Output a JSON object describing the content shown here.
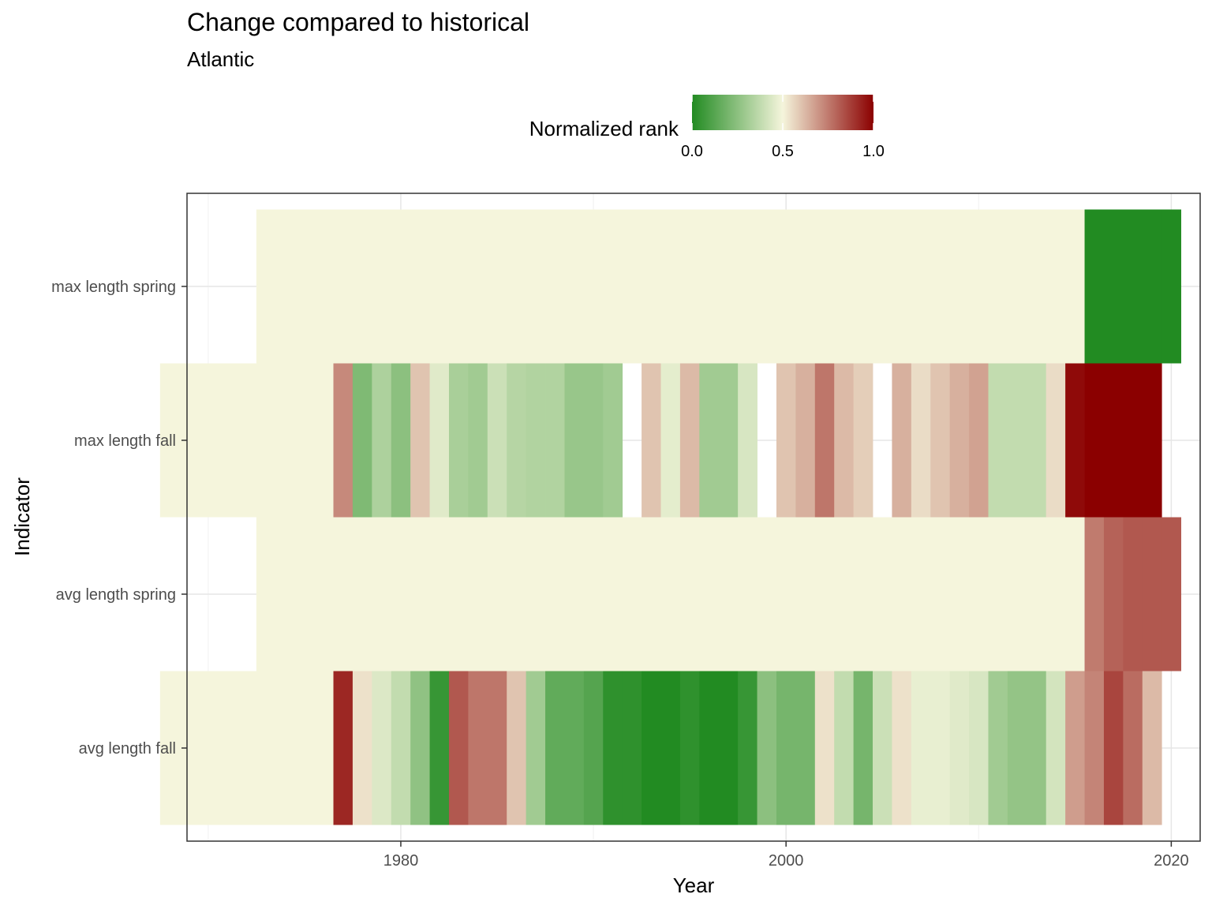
{
  "chart_data": {
    "type": "heatmap",
    "title": "Change compared to historical",
    "subtitle": "Atlantic",
    "xlabel": "Year",
    "ylabel": "Indicator",
    "xlim": [
      1968.9,
      2021.5
    ],
    "x_ticks": [
      1980,
      2000,
      2020
    ],
    "x_tick_labels": [
      "1980",
      "2000",
      "2020"
    ],
    "y_categories": [
      "avg length fall",
      "avg length spring",
      "max length fall",
      "max length spring"
    ],
    "grid": true,
    "legend": {
      "title": "Normalized rank",
      "position": "top",
      "ticks": [
        0.0,
        0.5,
        1.0
      ],
      "tick_labels": [
        "0.0",
        "0.5",
        "1.0"
      ],
      "colors": [
        "#228B22",
        "#F5F5DC",
        "#8B0000"
      ]
    },
    "rows": [
      {
        "name": "max length spring",
        "ranges": [
          {
            "from": 1973,
            "to": 2015,
            "value": 0.5
          }
        ],
        "cells": [
          [
            2016,
            0.0
          ],
          [
            2017,
            0.0
          ],
          [
            2018,
            0.0
          ],
          [
            2019,
            0.0
          ],
          [
            2020,
            0.0
          ]
        ]
      },
      {
        "name": "max length fall",
        "ranges": [
          {
            "from": 1968,
            "to": 1976,
            "value": 0.5
          }
        ],
        "cells": [
          [
            1977,
            0.72
          ],
          [
            1978,
            0.22
          ],
          [
            1979,
            0.33
          ],
          [
            1980,
            0.25
          ],
          [
            1981,
            0.6
          ],
          [
            1982,
            0.45
          ],
          [
            1983,
            0.32
          ],
          [
            1984,
            0.3
          ],
          [
            1985,
            0.4
          ],
          [
            1986,
            0.35
          ],
          [
            1987,
            0.34
          ],
          [
            1988,
            0.34
          ],
          [
            1989,
            0.28
          ],
          [
            1990,
            0.28
          ],
          [
            1991,
            0.3
          ],
          [
            1993,
            0.6
          ],
          [
            1994,
            0.46
          ],
          [
            1995,
            0.62
          ],
          [
            1996,
            0.3
          ],
          [
            1997,
            0.3
          ],
          [
            1998,
            0.43
          ],
          [
            2000,
            0.6
          ],
          [
            2001,
            0.64
          ],
          [
            2002,
            0.76
          ],
          [
            2003,
            0.62
          ],
          [
            2004,
            0.58
          ],
          [
            2006,
            0.64
          ],
          [
            2007,
            0.55
          ],
          [
            2008,
            0.6
          ],
          [
            2009,
            0.64
          ],
          [
            2010,
            0.67
          ],
          [
            2011,
            0.38
          ],
          [
            2012,
            0.38
          ],
          [
            2013,
            0.38
          ],
          [
            2014,
            0.55
          ],
          [
            2015,
            0.98
          ],
          [
            2016,
            1.0
          ],
          [
            2017,
            1.0
          ],
          [
            2018,
            1.0
          ],
          [
            2019,
            1.0
          ]
        ]
      },
      {
        "name": "avg length spring",
        "ranges": [
          {
            "from": 1973,
            "to": 2015,
            "value": 0.5
          }
        ],
        "cells": [
          [
            2016,
            0.75
          ],
          [
            2017,
            0.8
          ],
          [
            2018,
            0.82
          ],
          [
            2019,
            0.82
          ],
          [
            2020,
            0.82
          ]
        ]
      },
      {
        "name": "avg length fall",
        "ranges": [
          {
            "from": 1968,
            "to": 1976,
            "value": 0.5
          }
        ],
        "cells": [
          [
            1977,
            0.92
          ],
          [
            1978,
            0.54
          ],
          [
            1979,
            0.44
          ],
          [
            1980,
            0.38
          ],
          [
            1981,
            0.26
          ],
          [
            1982,
            0.05
          ],
          [
            1983,
            0.82
          ],
          [
            1984,
            0.76
          ],
          [
            1985,
            0.76
          ],
          [
            1986,
            0.6
          ],
          [
            1987,
            0.3
          ],
          [
            1988,
            0.15
          ],
          [
            1989,
            0.15
          ],
          [
            1990,
            0.12
          ],
          [
            1991,
            0.03
          ],
          [
            1992,
            0.03
          ],
          [
            1993,
            0.0
          ],
          [
            1994,
            0.0
          ],
          [
            1995,
            0.03
          ],
          [
            1996,
            0.0
          ],
          [
            1997,
            0.0
          ],
          [
            1998,
            0.05
          ],
          [
            1999,
            0.25
          ],
          [
            2000,
            0.2
          ],
          [
            2001,
            0.2
          ],
          [
            2002,
            0.54
          ],
          [
            2003,
            0.38
          ],
          [
            2004,
            0.2
          ],
          [
            2005,
            0.4
          ],
          [
            2006,
            0.54
          ],
          [
            2007,
            0.47
          ],
          [
            2008,
            0.47
          ],
          [
            2009,
            0.45
          ],
          [
            2010,
            0.43
          ],
          [
            2011,
            0.3
          ],
          [
            2012,
            0.27
          ],
          [
            2013,
            0.27
          ],
          [
            2014,
            0.42
          ],
          [
            2015,
            0.68
          ],
          [
            2016,
            0.73
          ],
          [
            2017,
            0.86
          ],
          [
            2018,
            0.78
          ],
          [
            2019,
            0.62
          ]
        ]
      }
    ]
  }
}
